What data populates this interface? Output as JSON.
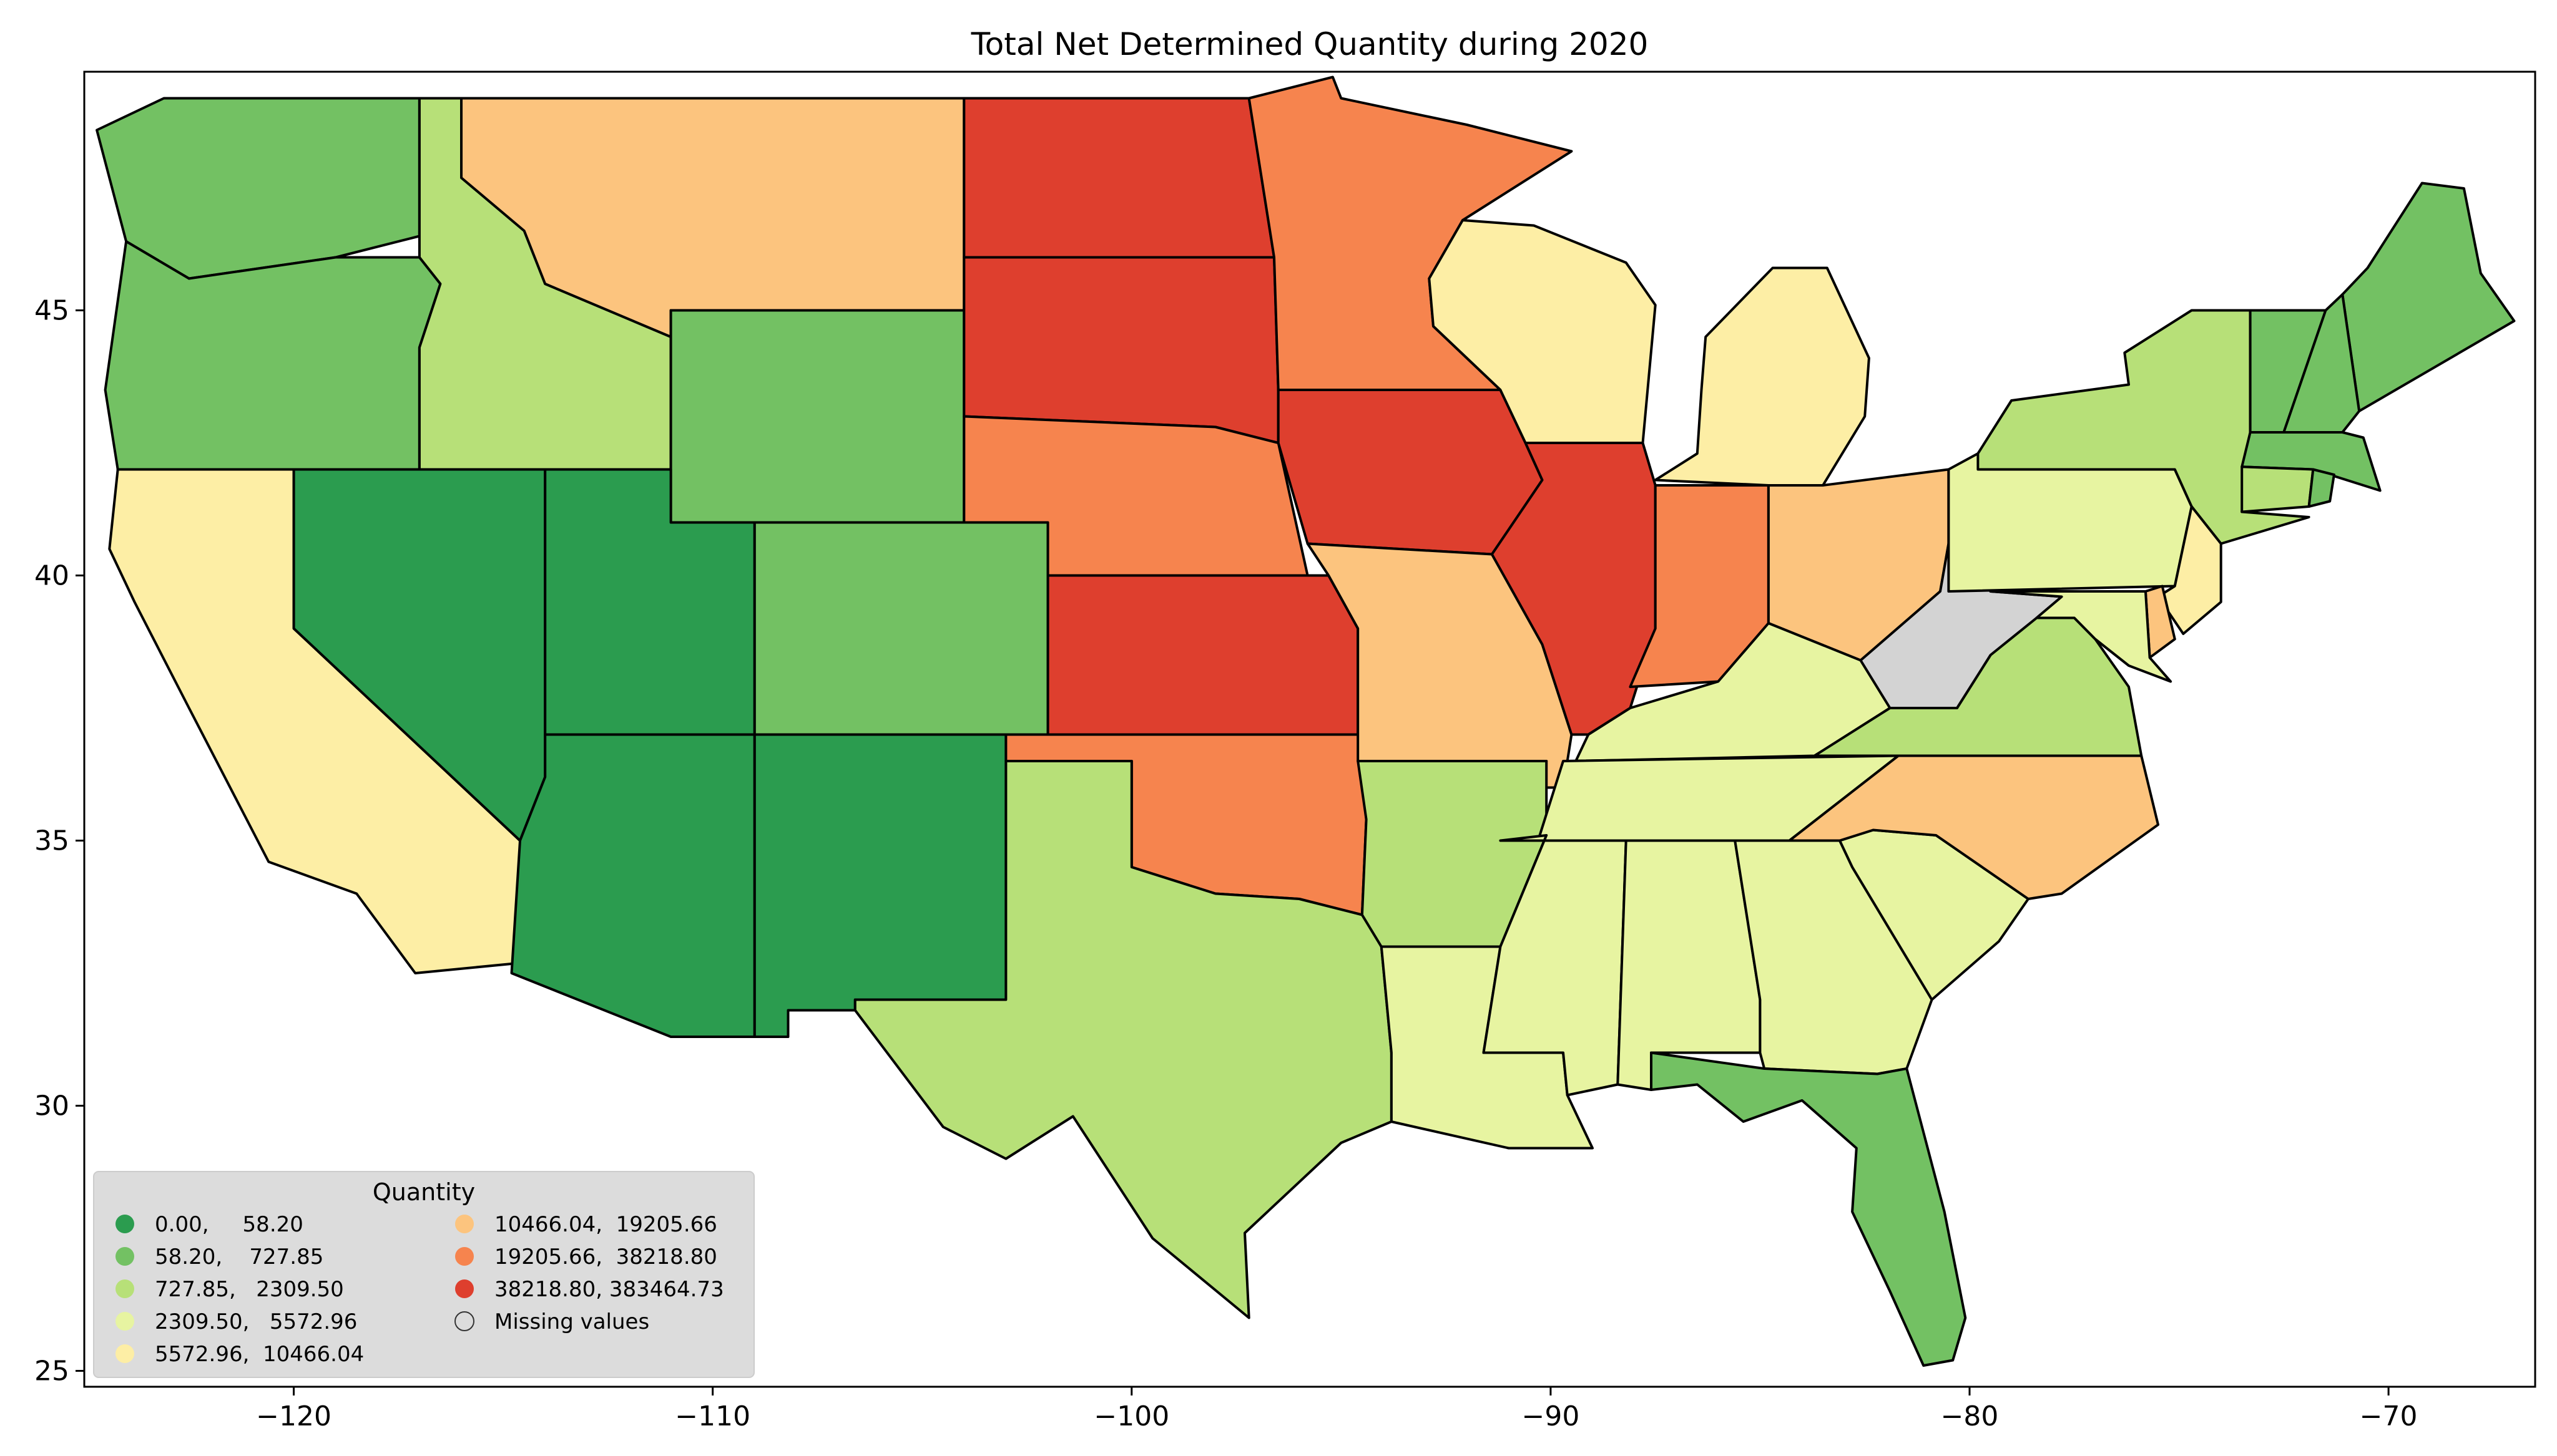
{
  "chart_data": {
    "type": "choropleth",
    "title": "Total Net Determined Quantity during 2020",
    "xlabel": "",
    "ylabel": "",
    "xlim": [
      -125,
      -66.5
    ],
    "ylim": [
      24.7,
      49.5
    ],
    "x_ticks": [
      -120,
      -110,
      -100,
      -90,
      -80,
      -70
    ],
    "x_tick_labels": [
      "−120",
      "−110",
      "−100",
      "−90",
      "−80",
      "−70"
    ],
    "y_ticks": [
      25,
      30,
      35,
      40,
      45
    ],
    "y_tick_labels": [
      "25",
      "30",
      "35",
      "40",
      "45"
    ],
    "grid": false,
    "legend": {
      "title": "Quantity",
      "placement": "lower-left",
      "entries": [
        {
          "label": "0.00,     58.20",
          "color": "#2b9c4f"
        },
        {
          "label": "58.20,    727.85",
          "color": "#73c163"
        },
        {
          "label": "727.85,   2309.50",
          "color": "#b7e078"
        },
        {
          "label": "2309.50,   5572.96",
          "color": "#e7f4a1"
        },
        {
          "label": "5572.96,  10466.04",
          "color": "#fdeea5"
        },
        {
          "label": "10466.04,  19205.66",
          "color": "#fcc47e"
        },
        {
          "label": "19205.66,  38218.80",
          "color": "#f6844e"
        },
        {
          "label": "38218.80, 383464.73",
          "color": "#de3f2e"
        },
        {
          "label": "Missing values",
          "color": "#d3d3d3"
        }
      ]
    },
    "regions": [
      {
        "name": "Washington",
        "class": 1
      },
      {
        "name": "Oregon",
        "class": 1
      },
      {
        "name": "California",
        "class": 4
      },
      {
        "name": "Idaho",
        "class": 2
      },
      {
        "name": "Nevada",
        "class": 0
      },
      {
        "name": "Montana",
        "class": 5
      },
      {
        "name": "Wyoming",
        "class": 1
      },
      {
        "name": "Utah",
        "class": 0
      },
      {
        "name": "Arizona",
        "class": 0
      },
      {
        "name": "Colorado",
        "class": 1
      },
      {
        "name": "New Mexico",
        "class": 0
      },
      {
        "name": "North Dakota",
        "class": 7
      },
      {
        "name": "South Dakota",
        "class": 7
      },
      {
        "name": "Nebraska",
        "class": 6
      },
      {
        "name": "Kansas",
        "class": 7
      },
      {
        "name": "Oklahoma",
        "class": 6
      },
      {
        "name": "Texas",
        "class": 2
      },
      {
        "name": "Minnesota",
        "class": 6
      },
      {
        "name": "Iowa",
        "class": 7
      },
      {
        "name": "Missouri",
        "class": 5
      },
      {
        "name": "Arkansas",
        "class": 2
      },
      {
        "name": "Louisiana",
        "class": 3
      },
      {
        "name": "Wisconsin",
        "class": 4
      },
      {
        "name": "Illinois",
        "class": 7
      },
      {
        "name": "Michigan",
        "class": 4
      },
      {
        "name": "Indiana",
        "class": 6
      },
      {
        "name": "Ohio",
        "class": 5
      },
      {
        "name": "Kentucky",
        "class": 3
      },
      {
        "name": "Tennessee",
        "class": 3
      },
      {
        "name": "Mississippi",
        "class": 3
      },
      {
        "name": "Alabama",
        "class": 3
      },
      {
        "name": "Georgia",
        "class": 3
      },
      {
        "name": "Florida",
        "class": 1
      },
      {
        "name": "South Carolina",
        "class": 3
      },
      {
        "name": "North Carolina",
        "class": 5
      },
      {
        "name": "Virginia",
        "class": 2
      },
      {
        "name": "West Virginia",
        "class": 8
      },
      {
        "name": "Pennsylvania",
        "class": 3
      },
      {
        "name": "New York",
        "class": 2
      },
      {
        "name": "Maine",
        "class": 1
      },
      {
        "name": "Vermont",
        "class": 1
      },
      {
        "name": "New Hampshire",
        "class": 1
      },
      {
        "name": "Massachusetts",
        "class": 1
      },
      {
        "name": "Connecticut",
        "class": 2
      },
      {
        "name": "Rhode Island",
        "class": 1
      },
      {
        "name": "New Jersey",
        "class": 4
      },
      {
        "name": "Delaware",
        "class": 5
      },
      {
        "name": "Maryland",
        "class": 3
      }
    ]
  }
}
